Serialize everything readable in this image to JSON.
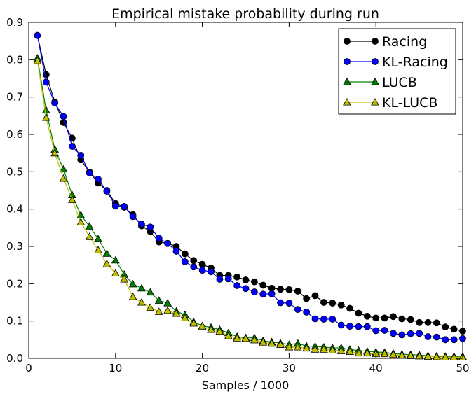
{
  "chart_data": {
    "type": "line",
    "title": "Empirical mistake probability during run",
    "xlabel": "Samples / 1000",
    "ylabel": "",
    "xlim": [
      0,
      50
    ],
    "ylim": [
      0,
      0.9
    ],
    "x_ticks": [
      0,
      10,
      20,
      30,
      40,
      50
    ],
    "x_tick_labels": [
      "0",
      "10",
      "20",
      "30",
      "40",
      "50"
    ],
    "y_ticks": [
      0.0,
      0.1,
      0.2,
      0.3,
      0.4,
      0.5,
      0.6,
      0.7,
      0.8,
      0.9
    ],
    "y_tick_labels": [
      "0.0",
      "0.1",
      "0.2",
      "0.3",
      "0.4",
      "0.5",
      "0.6",
      "0.7",
      "0.8",
      "0.9"
    ],
    "grid": false,
    "legend_position": "top-right",
    "x": [
      1,
      2,
      3,
      4,
      5,
      6,
      7,
      8,
      9,
      10,
      11,
      12,
      13,
      14,
      15,
      16,
      17,
      18,
      19,
      20,
      21,
      22,
      23,
      24,
      25,
      26,
      27,
      28,
      29,
      30,
      31,
      32,
      33,
      34,
      35,
      36,
      37,
      38,
      39,
      40,
      41,
      42,
      43,
      44,
      45,
      46,
      47,
      48,
      49,
      50
    ],
    "series": [
      {
        "name": "Racing",
        "color": "#000000",
        "marker": "circle",
        "values": [
          0.865,
          0.76,
          0.687,
          0.632,
          0.59,
          0.532,
          0.499,
          0.47,
          0.45,
          0.415,
          0.405,
          0.385,
          0.355,
          0.34,
          0.312,
          0.308,
          0.3,
          0.28,
          0.262,
          0.252,
          0.242,
          0.222,
          0.222,
          0.218,
          0.21,
          0.205,
          0.196,
          0.188,
          0.185,
          0.184,
          0.18,
          0.16,
          0.168,
          0.15,
          0.148,
          0.143,
          0.134,
          0.121,
          0.113,
          0.108,
          0.108,
          0.112,
          0.106,
          0.104,
          0.096,
          0.096,
          0.095,
          0.084,
          0.078,
          0.073
        ]
      },
      {
        "name": "KL-Racing",
        "color": "#0000ff",
        "marker": "circle",
        "values": [
          0.865,
          0.74,
          0.684,
          0.648,
          0.568,
          0.544,
          0.497,
          0.48,
          0.448,
          0.408,
          0.407,
          0.38,
          0.36,
          0.352,
          0.322,
          0.308,
          0.287,
          0.259,
          0.245,
          0.236,
          0.232,
          0.212,
          0.213,
          0.195,
          0.187,
          0.178,
          0.172,
          0.173,
          0.149,
          0.148,
          0.131,
          0.124,
          0.106,
          0.105,
          0.105,
          0.089,
          0.086,
          0.085,
          0.085,
          0.074,
          0.075,
          0.067,
          0.063,
          0.066,
          0.067,
          0.058,
          0.057,
          0.05,
          0.05,
          0.053
        ]
      },
      {
        "name": "LUCB",
        "color": "#008000",
        "marker": "triangle",
        "values": [
          0.804,
          0.665,
          0.56,
          0.507,
          0.438,
          0.384,
          0.354,
          0.32,
          0.281,
          0.263,
          0.225,
          0.199,
          0.188,
          0.177,
          0.155,
          0.148,
          0.126,
          0.117,
          0.098,
          0.087,
          0.083,
          0.077,
          0.068,
          0.058,
          0.055,
          0.055,
          0.047,
          0.044,
          0.041,
          0.037,
          0.04,
          0.033,
          0.032,
          0.03,
          0.028,
          0.028,
          0.024,
          0.021,
          0.019,
          0.017,
          0.016,
          0.013,
          0.011,
          0.01,
          0.009,
          0.007,
          0.006,
          0.005,
          0.005,
          0.005
        ]
      },
      {
        "name": "KL-LUCB",
        "color": "#bfbf00",
        "marker": "triangle",
        "values": [
          0.797,
          0.645,
          0.55,
          0.482,
          0.425,
          0.365,
          0.326,
          0.29,
          0.253,
          0.228,
          0.212,
          0.165,
          0.15,
          0.136,
          0.125,
          0.128,
          0.12,
          0.108,
          0.094,
          0.086,
          0.077,
          0.072,
          0.06,
          0.054,
          0.053,
          0.049,
          0.043,
          0.04,
          0.037,
          0.03,
          0.03,
          0.027,
          0.024,
          0.024,
          0.022,
          0.02,
          0.018,
          0.014,
          0.014,
          0.012,
          0.012,
          0.01,
          0.008,
          0.007,
          0.006,
          0.005,
          0.004,
          0.003,
          0.003,
          0.003
        ]
      }
    ]
  }
}
